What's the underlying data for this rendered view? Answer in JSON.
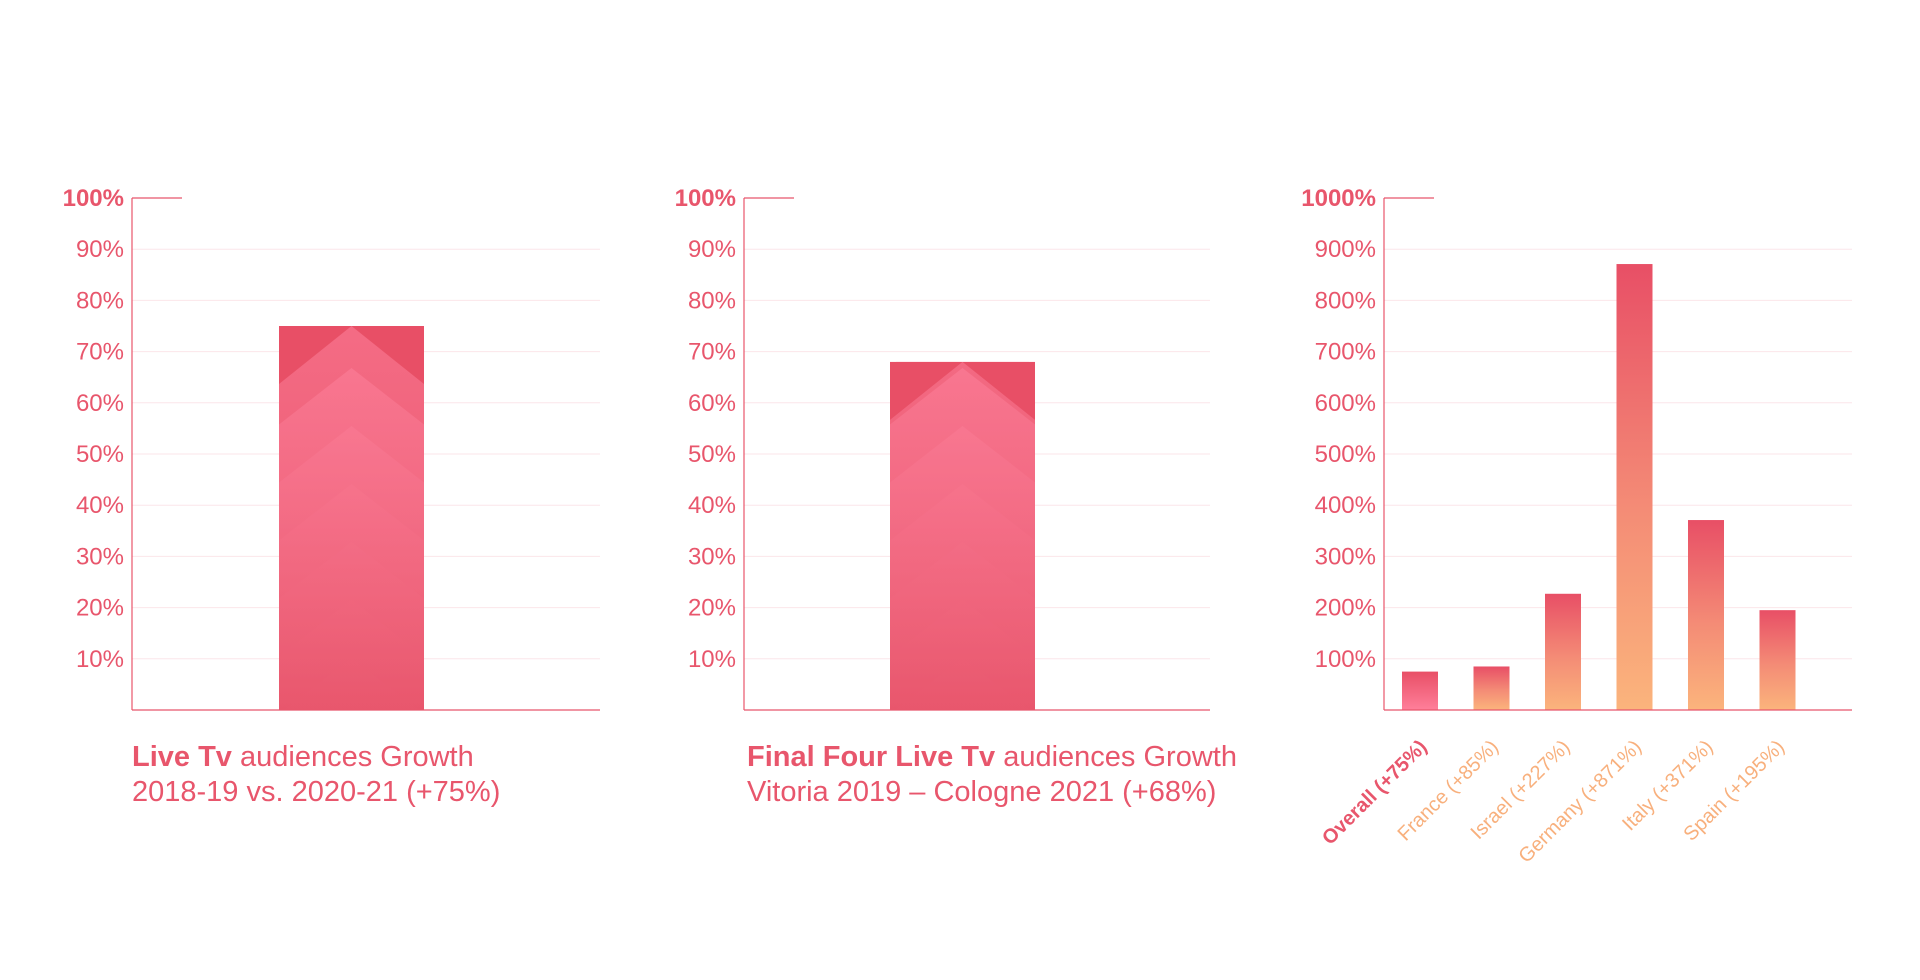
{
  "colors": {
    "accent": "#e8566c",
    "bar_pink_top": "#e84f66",
    "bar_pink_light": "#ff7f9a",
    "bar_orange": "#fbb47c",
    "category_label": "#f8b07d"
  },
  "captions": [
    {
      "bold": "Live Tv",
      "rest": " audiences Growth",
      "line2": "2018-19 vs. 2020-21 (+75%)"
    },
    {
      "bold": "Final Four Live Tv",
      "rest": " audiences Growth",
      "line2": "Vitoria 2019 – Cologne 2021 (+68%)"
    }
  ],
  "chart_data": [
    {
      "type": "bar",
      "categories": [
        ""
      ],
      "values": [
        75
      ],
      "ylim": [
        0,
        100
      ],
      "yticks": [
        10,
        20,
        30,
        40,
        50,
        60,
        70,
        80,
        90,
        100
      ],
      "ytick_labels": [
        "10%",
        "20%",
        "30%",
        "40%",
        "50%",
        "60%",
        "70%",
        "80%",
        "90%",
        "100%"
      ],
      "grid": true,
      "bar_style": "chevron-arrows",
      "title_bold": "Live Tv",
      "title": "audiences Growth",
      "subtitle": "2018-19 vs. 2020-21 (+75%)"
    },
    {
      "type": "bar",
      "categories": [
        ""
      ],
      "values": [
        68
      ],
      "ylim": [
        0,
        100
      ],
      "yticks": [
        10,
        20,
        30,
        40,
        50,
        60,
        70,
        80,
        90,
        100
      ],
      "ytick_labels": [
        "10%",
        "20%",
        "30%",
        "40%",
        "50%",
        "60%",
        "70%",
        "80%",
        "90%",
        "100%"
      ],
      "grid": true,
      "bar_style": "chevron-arrows",
      "title_bold": "Final Four Live Tv",
      "title": "audiences Growth",
      "subtitle": "Vitoria 2019 – Cologne 2021 (+68%)"
    },
    {
      "type": "bar",
      "categories": [
        "Overall (+75%)",
        "France (+85%)",
        "Israel (+227%)",
        "Germany (+871%)",
        "Italy (+371%)",
        "Spain (+195%)"
      ],
      "values": [
        75,
        85,
        227,
        871,
        371,
        195
      ],
      "highlight_category": "Overall (+75%)",
      "ylim": [
        0,
        1000
      ],
      "yticks": [
        100,
        200,
        300,
        400,
        500,
        600,
        700,
        800,
        900,
        1000
      ],
      "ytick_labels": [
        "100%",
        "200%",
        "300%",
        "400%",
        "500%",
        "600%",
        "700%",
        "800%",
        "900%",
        "1000%"
      ],
      "grid": true,
      "bar_style": "gradient"
    }
  ]
}
